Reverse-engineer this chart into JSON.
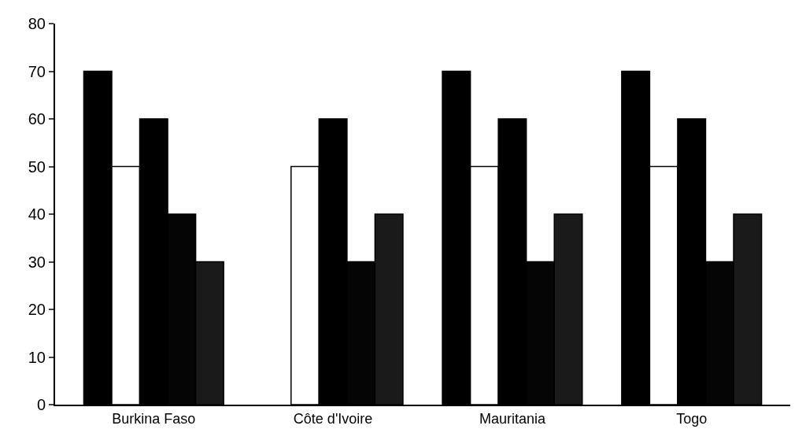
{
  "chart_data": {
    "type": "bar",
    "categories": [
      "Burkina Faso",
      "Côte d'Ivoire",
      "Mauritania",
      "Togo"
    ],
    "series": [
      {
        "color": "#000000",
        "values": [
          70,
          null,
          70,
          70
        ]
      },
      {
        "color": "#ffffff",
        "values": [
          50,
          50,
          50,
          50
        ]
      },
      {
        "color": "#000000",
        "values": [
          60,
          60,
          60,
          60
        ]
      },
      {
        "color": "#050505",
        "values": [
          40,
          30,
          30,
          30
        ]
      },
      {
        "color": "#1a1a1a",
        "values": [
          30,
          40,
          40,
          40
        ]
      }
    ],
    "ylim": [
      0,
      80
    ],
    "yticks": [
      0,
      10,
      20,
      30,
      40,
      50,
      60,
      70,
      80
    ]
  }
}
